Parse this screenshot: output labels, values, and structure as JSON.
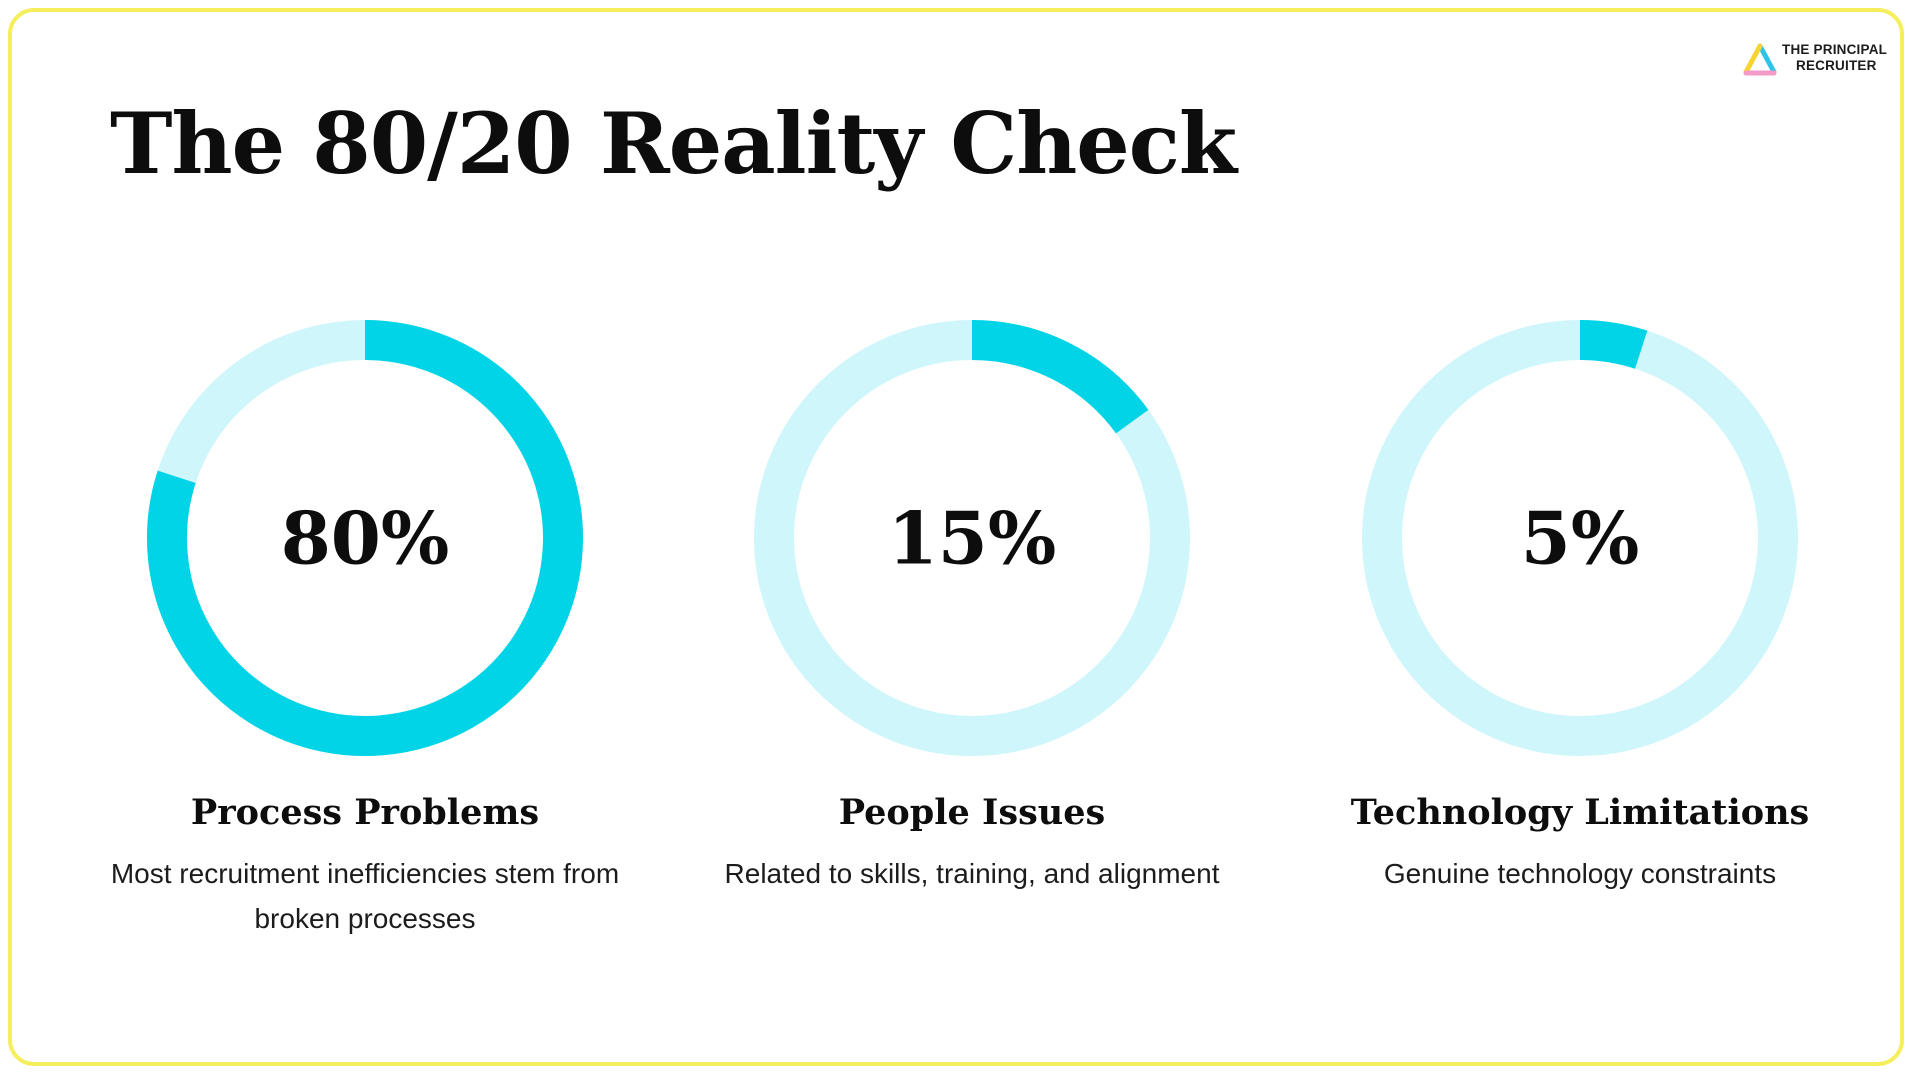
{
  "title": "The 80/20 Reality Check",
  "logo": {
    "line1": "THE PRINCIPAL",
    "line2": "RECRUITER"
  },
  "colors": {
    "accent": "#00d4e6",
    "track": "#cff6fb",
    "border": "#f5ef5e",
    "text": "#0d0d0d"
  },
  "chart_data": [
    {
      "type": "pie",
      "value": 80,
      "max": 100,
      "value_label": "80%",
      "title": "Process Problems",
      "description": "Most recruitment inefficiencies stem from broken processes"
    },
    {
      "type": "pie",
      "value": 15,
      "max": 100,
      "value_label": "15%",
      "title": "People Issues",
      "description": "Related to skills, training, and alignment"
    },
    {
      "type": "pie",
      "value": 5,
      "max": 100,
      "value_label": "5%",
      "title": "Technology Limitations",
      "description": "Genuine technology constraints"
    }
  ]
}
